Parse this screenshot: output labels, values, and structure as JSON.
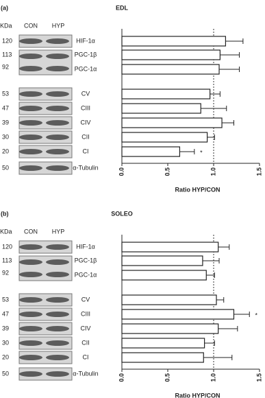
{
  "chart_data": [
    {
      "type": "bar",
      "orientation": "horizontal",
      "panel_label": "(a)",
      "title": "EDL",
      "categories": [
        "HIF-1α",
        "PGC-1β",
        "PGC-1α",
        "CV",
        "CIII",
        "CIV",
        "CII",
        "CI"
      ],
      "values": [
        1.13,
        1.07,
        1.06,
        0.96,
        0.86,
        1.09,
        0.93,
        0.63
      ],
      "errors": [
        0.19,
        0.21,
        0.22,
        0.11,
        0.28,
        0.13,
        0.08,
        0.16
      ],
      "color": "#ffffff",
      "edge_color": "#222222",
      "xlim": [
        0,
        1.5
      ],
      "xticks": [
        {
          "value": 0,
          "label": "0.0"
        },
        0.5,
        {
          "value": 1,
          "label": "1.0"
        },
        1.5
      ],
      "xlabel": "Ratio HYP/CON",
      "reference_line": 1,
      "annotations": [
        {
          "text": "*",
          "category": "CI"
        }
      ]
    },
    {
      "type": "bar",
      "orientation": "horizontal",
      "panel_label": "(b)",
      "title": "SOLEO",
      "categories": [
        "HIF-1α",
        "PGC-1β",
        "PGC-1α",
        "CV",
        "CIII",
        "CIV",
        "CII",
        "CI"
      ],
      "values": [
        1.05,
        0.88,
        0.92,
        1.03,
        1.22,
        1.05,
        0.9,
        0.89
      ],
      "errors": [
        0.12,
        0.18,
        0.09,
        0.08,
        0.17,
        0.21,
        0.11,
        0.31
      ],
      "color": "#ffffff",
      "edge_color": "#222222",
      "xlim": [
        0,
        1.5
      ],
      "xticks": [
        {
          "value": 0,
          "label": "0.0"
        },
        0.5,
        {
          "value": 1,
          "label": "1.0"
        },
        1.5
      ],
      "xlabel": "Ratio HYP/CON",
      "reference_line": 1,
      "annotations": [
        {
          "text": "*",
          "category": "CIII"
        }
      ]
    }
  ],
  "blots": [
    {
      "kda_header": "KDa",
      "lanes": [
        "CON",
        "HYP"
      ],
      "markers": [
        "120",
        "113",
        "92",
        "53",
        "47",
        "39",
        "30",
        "20",
        "50"
      ],
      "loading_control": "α-Tubulin"
    },
    {
      "kda_header": "KDa",
      "lanes": [
        "CON",
        "HYP"
      ],
      "markers": [
        "120",
        "113",
        "92",
        "53",
        "47",
        "39",
        "30",
        "20",
        "50"
      ],
      "loading_control": "α-Tubulin"
    }
  ]
}
